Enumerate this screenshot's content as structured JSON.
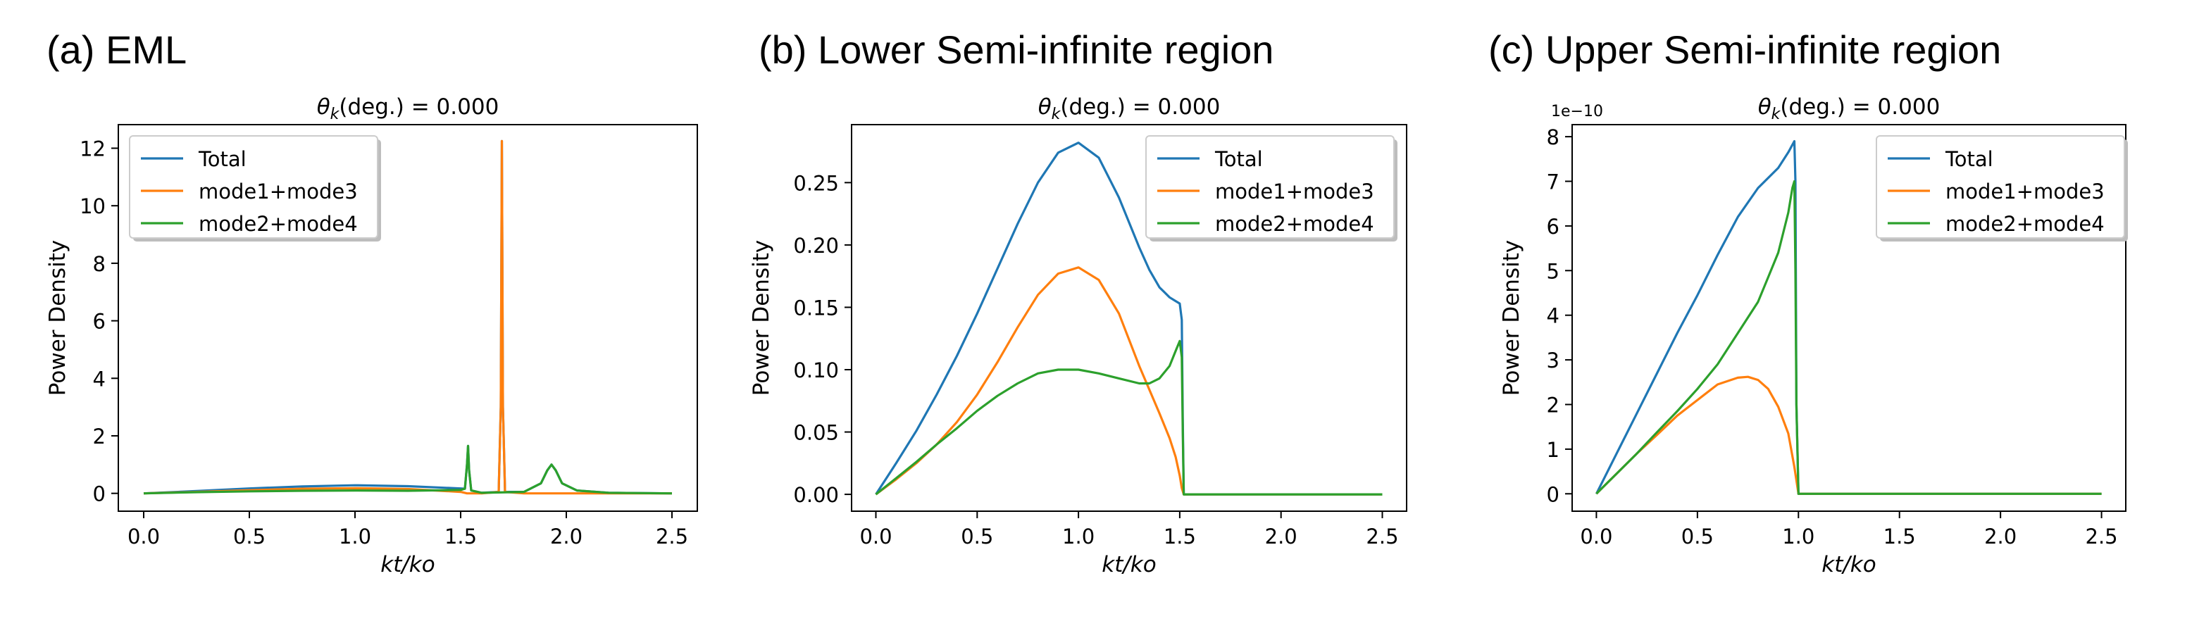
{
  "chart_data": [
    {
      "type": "line",
      "panel_label": "(a) EML",
      "title": "θk(deg.) = 0.000",
      "title_main": "θ",
      "title_sub": "k",
      "title_rest": "(deg.) = 0.000",
      "xlabel": "kt/ko",
      "ylabel": "Power Density",
      "xlim": [
        -0.12,
        2.62
      ],
      "ylim": [
        -0.62,
        12.82
      ],
      "xticks": [
        0.0,
        0.5,
        1.0,
        1.5,
        2.0,
        2.5
      ],
      "xtick_labels": [
        "0.0",
        "0.5",
        "1.0",
        "1.5",
        "2.0",
        "2.5"
      ],
      "yticks": [
        0,
        2,
        4,
        6,
        8,
        10,
        12
      ],
      "ytick_labels": [
        "0",
        "2",
        "4",
        "6",
        "8",
        "10",
        "12"
      ],
      "offset_label": "",
      "legend_position": "upper-left",
      "series": [
        {
          "name": "Total",
          "color": "#1f77b4",
          "x": [
            0.0,
            0.25,
            0.5,
            0.75,
            1.0,
            1.25,
            1.5,
            1.52,
            1.522,
            1.53,
            1.535,
            1.54,
            1.55,
            1.6,
            1.68,
            1.69,
            1.695,
            1.7,
            1.71,
            1.8,
            1.88,
            1.91,
            1.93,
            1.95,
            1.98,
            2.05,
            2.2,
            2.5
          ],
          "y": [
            0.0,
            0.08,
            0.17,
            0.24,
            0.28,
            0.25,
            0.17,
            0.16,
            0.3,
            1.0,
            1.65,
            0.8,
            0.1,
            0.02,
            0.05,
            3.0,
            12.25,
            3.0,
            0.05,
            0.05,
            0.35,
            0.8,
            1.0,
            0.8,
            0.35,
            0.1,
            0.02,
            0.0
          ]
        },
        {
          "name": "mode1+mode3",
          "color": "#ff7f0e",
          "x": [
            0.0,
            0.25,
            0.5,
            0.75,
            1.0,
            1.25,
            1.5,
            1.53,
            1.6,
            1.68,
            1.69,
            1.695,
            1.7,
            1.71,
            1.8,
            2.5
          ],
          "y": [
            0.0,
            0.05,
            0.11,
            0.16,
            0.18,
            0.15,
            0.05,
            0.0,
            0.0,
            0.05,
            3.0,
            12.25,
            3.0,
            0.05,
            0.0,
            0.0
          ]
        },
        {
          "name": "mode2+mode4",
          "color": "#2ca02c",
          "x": [
            0.0,
            0.25,
            0.5,
            0.75,
            1.0,
            1.25,
            1.5,
            1.52,
            1.53,
            1.535,
            1.54,
            1.55,
            1.6,
            1.8,
            1.88,
            1.91,
            1.93,
            1.95,
            1.98,
            2.05,
            2.2,
            2.5
          ],
          "y": [
            0.0,
            0.04,
            0.07,
            0.09,
            0.1,
            0.09,
            0.12,
            0.16,
            1.0,
            1.65,
            0.8,
            0.1,
            0.02,
            0.05,
            0.35,
            0.8,
            1.0,
            0.8,
            0.35,
            0.1,
            0.02,
            0.0
          ]
        }
      ]
    },
    {
      "type": "line",
      "panel_label": "(b) Lower Semi-infinite region",
      "title": "θk(deg.) = 0.000",
      "title_main": "θ",
      "title_sub": "k",
      "title_rest": "(deg.) = 0.000",
      "xlabel": "kt/ko",
      "ylabel": "Power Density",
      "xlim": [
        -0.12,
        2.62
      ],
      "ylim": [
        -0.0135,
        0.2965
      ],
      "xticks": [
        0.0,
        0.5,
        1.0,
        1.5,
        2.0,
        2.5
      ],
      "xtick_labels": [
        "0.0",
        "0.5",
        "1.0",
        "1.5",
        "2.0",
        "2.5"
      ],
      "yticks": [
        0.0,
        0.05,
        0.1,
        0.15,
        0.2,
        0.25
      ],
      "ytick_labels": [
        "0.00",
        "0.05",
        "0.10",
        "0.15",
        "0.20",
        "0.25"
      ],
      "offset_label": "",
      "legend_position": "upper-right",
      "series": [
        {
          "name": "Total",
          "color": "#1f77b4",
          "x": [
            0.0,
            0.1,
            0.2,
            0.3,
            0.4,
            0.5,
            0.6,
            0.7,
            0.8,
            0.9,
            1.0,
            1.1,
            1.2,
            1.3,
            1.35,
            1.4,
            1.45,
            1.48,
            1.5,
            1.51,
            1.515,
            1.52,
            2.5
          ],
          "y": [
            0.0,
            0.025,
            0.051,
            0.08,
            0.111,
            0.145,
            0.181,
            0.217,
            0.25,
            0.274,
            0.282,
            0.27,
            0.238,
            0.198,
            0.18,
            0.166,
            0.158,
            0.155,
            0.153,
            0.14,
            0.06,
            0.0,
            0.0
          ]
        },
        {
          "name": "mode1+mode3",
          "color": "#ff7f0e",
          "x": [
            0.0,
            0.1,
            0.2,
            0.3,
            0.4,
            0.5,
            0.6,
            0.7,
            0.8,
            0.9,
            1.0,
            1.1,
            1.2,
            1.3,
            1.4,
            1.45,
            1.48,
            1.5,
            1.51,
            1.52,
            2.5
          ],
          "y": [
            0.0,
            0.012,
            0.025,
            0.04,
            0.058,
            0.08,
            0.106,
            0.134,
            0.16,
            0.177,
            0.182,
            0.172,
            0.145,
            0.103,
            0.065,
            0.045,
            0.03,
            0.015,
            0.005,
            0.0,
            0.0
          ]
        },
        {
          "name": "mode2+mode4",
          "color": "#2ca02c",
          "x": [
            0.0,
            0.1,
            0.2,
            0.3,
            0.4,
            0.5,
            0.6,
            0.7,
            0.8,
            0.9,
            1.0,
            1.1,
            1.2,
            1.3,
            1.35,
            1.4,
            1.45,
            1.48,
            1.5,
            1.51,
            1.515,
            1.52,
            2.5
          ],
          "y": [
            0.0,
            0.013,
            0.026,
            0.04,
            0.053,
            0.067,
            0.079,
            0.089,
            0.097,
            0.1,
            0.1,
            0.097,
            0.093,
            0.089,
            0.089,
            0.093,
            0.103,
            0.115,
            0.123,
            0.11,
            0.05,
            0.0,
            0.0
          ]
        }
      ]
    },
    {
      "type": "line",
      "panel_label": "(c) Upper Semi-infinite region",
      "title": "θk(deg.) = 0.000",
      "title_main": "θ",
      "title_sub": "k",
      "title_rest": "(deg.) = 0.000",
      "xlabel": "kt/ko",
      "ylabel": "Power Density",
      "xlim": [
        -0.12,
        2.62
      ],
      "ylim": [
        -0.39,
        8.27
      ],
      "xticks": [
        0.0,
        0.5,
        1.0,
        1.5,
        2.0,
        2.5
      ],
      "xtick_labels": [
        "0.0",
        "0.5",
        "1.0",
        "1.5",
        "2.0",
        "2.5"
      ],
      "yticks": [
        0,
        1,
        2,
        3,
        4,
        5,
        6,
        7,
        8
      ],
      "ytick_labels": [
        "0",
        "1",
        "2",
        "3",
        "4",
        "5",
        "6",
        "7",
        "8"
      ],
      "offset_label": "1e−10",
      "legend_position": "upper-right",
      "series": [
        {
          "name": "Total",
          "color": "#1f77b4",
          "x": [
            0.0,
            0.1,
            0.2,
            0.3,
            0.4,
            0.5,
            0.6,
            0.7,
            0.8,
            0.9,
            0.95,
            0.98,
            0.985,
            0.99,
            1.0,
            2.5
          ],
          "y": [
            0.0,
            0.9,
            1.8,
            2.7,
            3.6,
            4.45,
            5.35,
            6.2,
            6.85,
            7.3,
            7.65,
            7.9,
            7.0,
            2.0,
            0.0,
            0.0
          ]
        },
        {
          "name": "mode1+mode3",
          "color": "#ff7f0e",
          "x": [
            0.0,
            0.1,
            0.2,
            0.3,
            0.4,
            0.5,
            0.6,
            0.7,
            0.75,
            0.8,
            0.85,
            0.9,
            0.95,
            0.98,
            1.0,
            2.5
          ],
          "y": [
            0.0,
            0.45,
            0.9,
            1.32,
            1.75,
            2.1,
            2.45,
            2.6,
            2.62,
            2.55,
            2.35,
            1.95,
            1.35,
            0.6,
            0.0,
            0.0
          ]
        },
        {
          "name": "mode2+mode4",
          "color": "#2ca02c",
          "x": [
            0.0,
            0.1,
            0.2,
            0.3,
            0.4,
            0.5,
            0.6,
            0.7,
            0.8,
            0.85,
            0.9,
            0.95,
            0.97,
            0.98,
            0.985,
            0.99,
            1.0,
            2.5
          ],
          "y": [
            0.0,
            0.45,
            0.9,
            1.38,
            1.85,
            2.35,
            2.9,
            3.6,
            4.3,
            4.85,
            5.4,
            6.3,
            6.85,
            7.0,
            5.0,
            2.0,
            0.0,
            0.0
          ]
        }
      ]
    }
  ]
}
